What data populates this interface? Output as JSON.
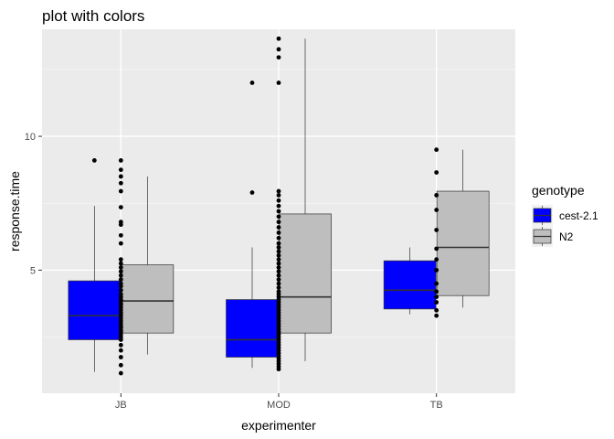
{
  "chart_data": {
    "type": "box",
    "title": "plot with colors",
    "xlabel": "experimenter",
    "ylabel": "response.time",
    "categories": [
      "JB",
      "MOD",
      "TB"
    ],
    "ylim": [
      0.4,
      14.0
    ],
    "yticks": [
      5,
      10
    ],
    "ytick_labels": [
      "5",
      "10"
    ],
    "grid": true,
    "legend": {
      "title": "genotype",
      "position": "right",
      "entries": [
        {
          "name": "cest-2.1",
          "color": "#0000ff"
        },
        {
          "name": "N2",
          "color": "#bebebe"
        }
      ]
    },
    "series": [
      {
        "name": "cest-2.1",
        "color": "#0000ff",
        "boxes": [
          {
            "category": "JB",
            "whisker_low": 1.2,
            "q1": 2.4,
            "median": 3.3,
            "q3": 4.6,
            "whisker_high": 7.4,
            "outliers": [
              9.1
            ]
          },
          {
            "category": "MOD",
            "whisker_low": 1.35,
            "q1": 1.75,
            "median": 2.4,
            "q3": 3.9,
            "whisker_high": 5.85,
            "outliers": [
              7.9,
              12.0
            ]
          },
          {
            "category": "TB",
            "whisker_low": 3.35,
            "q1": 3.55,
            "median": 4.25,
            "q3": 5.35,
            "whisker_high": 5.85,
            "outliers": []
          }
        ]
      },
      {
        "name": "N2",
        "color": "#bebebe",
        "boxes": [
          {
            "category": "JB",
            "whisker_low": 1.85,
            "q1": 2.65,
            "median": 3.85,
            "q3": 5.2,
            "whisker_high": 8.5,
            "outliers": []
          },
          {
            "category": "MOD",
            "whisker_low": 1.6,
            "q1": 2.65,
            "median": 4.0,
            "q3": 7.1,
            "whisker_high": 13.65,
            "outliers": []
          },
          {
            "category": "TB",
            "whisker_low": 3.6,
            "q1": 4.05,
            "median": 5.85,
            "q3": 7.95,
            "whisker_high": 9.5,
            "outliers": []
          }
        ]
      }
    ],
    "points": [
      {
        "category": "JB",
        "values": [
          1.15,
          1.45,
          1.75,
          2.0,
          2.2,
          2.4,
          2.5,
          2.6,
          2.7,
          2.75,
          2.85,
          2.9,
          3.0,
          3.1,
          3.2,
          3.3,
          3.4,
          3.5,
          3.6,
          3.7,
          3.75,
          3.85,
          3.9,
          4.0,
          4.1,
          4.25,
          4.4,
          4.5,
          4.65,
          4.8,
          4.95,
          5.1,
          5.25,
          5.4,
          6.0,
          6.3,
          6.7,
          6.8,
          7.35,
          7.95,
          8.25,
          8.5,
          8.75,
          9.1
        ]
      },
      {
        "category": "MOD",
        "values": [
          1.3,
          1.4,
          1.5,
          1.6,
          1.7,
          1.8,
          1.9,
          2.0,
          2.1,
          2.2,
          2.3,
          2.4,
          2.5,
          2.6,
          2.7,
          2.8,
          2.9,
          3.0,
          3.1,
          3.2,
          3.3,
          3.4,
          3.5,
          3.6,
          3.7,
          3.8,
          3.9,
          4.0,
          4.1,
          4.2,
          4.35,
          4.5,
          4.65,
          4.8,
          4.95,
          5.1,
          5.25,
          5.4,
          5.55,
          5.7,
          5.85,
          6.0,
          6.2,
          6.4,
          6.6,
          6.8,
          7.0,
          7.2,
          7.4,
          7.6,
          7.8,
          7.95,
          12.0,
          12.95,
          13.25,
          13.65
        ]
      },
      {
        "category": "TB",
        "values": [
          3.3,
          3.5,
          3.8,
          4.0,
          4.2,
          4.5,
          5.0,
          5.4,
          5.8,
          6.5,
          7.25,
          7.8,
          8.65,
          9.5
        ]
      }
    ]
  }
}
